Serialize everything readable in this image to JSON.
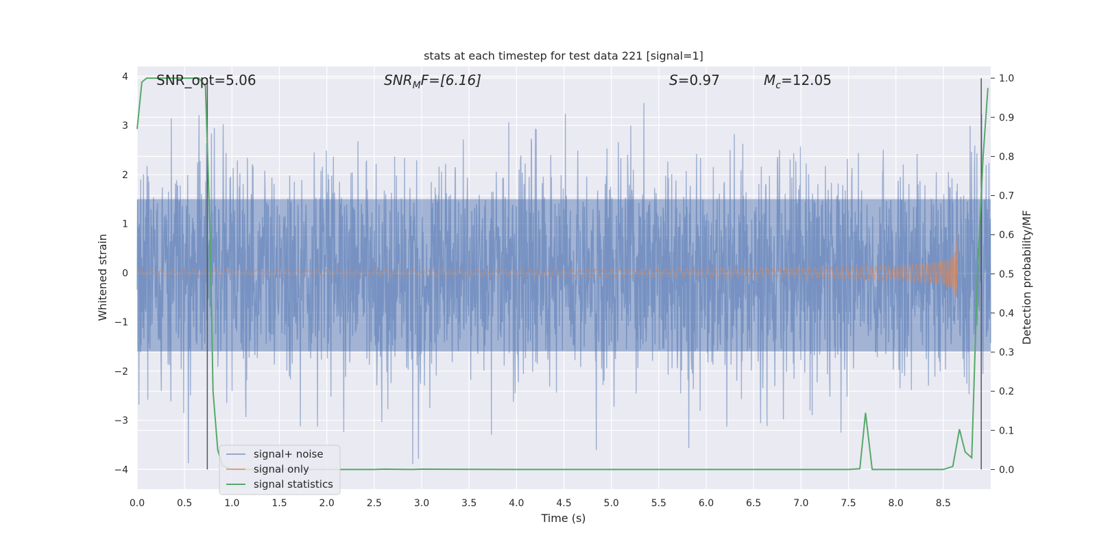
{
  "chart_data": {
    "type": "line",
    "title": "stats at each timestep for test data 221 [signal=1]",
    "xlabel": "Time (s)",
    "ylabel": "Whitened strain",
    "y2label": "Detection probability/MF",
    "xlim": [
      0.0,
      9.0
    ],
    "ylim": [
      -4.4,
      4.2
    ],
    "y2lim": [
      -0.05,
      1.03
    ],
    "xticks": [
      0.0,
      0.5,
      1.0,
      1.5,
      2.0,
      2.5,
      3.0,
      3.5,
      4.0,
      4.5,
      5.0,
      5.5,
      6.0,
      6.5,
      7.0,
      7.5,
      8.0,
      8.5
    ],
    "xtick_labels": [
      "0.0",
      "0.5",
      "1.0",
      "1.5",
      "2.0",
      "2.5",
      "3.0",
      "3.5",
      "4.0",
      "4.5",
      "5.0",
      "5.5",
      "6.0",
      "6.5",
      "7.0",
      "7.5",
      "8.0",
      "8.5"
    ],
    "yticks": [
      -4,
      -3,
      -2,
      -1,
      0,
      1,
      2,
      3,
      4
    ],
    "ytick_labels": [
      "−4",
      "−3",
      "−2",
      "−1",
      "0",
      "1",
      "2",
      "3",
      "4"
    ],
    "y2ticks": [
      0.0,
      0.1,
      0.2,
      0.3,
      0.4,
      0.5,
      0.6,
      0.7,
      0.8,
      0.9,
      1.0
    ],
    "y2tick_labels": [
      "0.0",
      "0.1",
      "0.2",
      "0.3",
      "0.4",
      "0.5",
      "0.6",
      "0.7",
      "0.8",
      "0.9",
      "1.0"
    ],
    "annotations": {
      "snr_opt": "SNR_opt=5.06",
      "snr_mf_sym": "SNR",
      "snr_mf_sub": "M",
      "snr_mf_rest": "F=[6.16]",
      "s_sym": "S",
      "s_rest": "=0.97",
      "mc_sym": "M",
      "mc_sub": "c",
      "mc_rest": "=12.05"
    },
    "legend": {
      "position": "lower-left",
      "entries": [
        "signal+ noise",
        "signal only",
        "signal statistics"
      ]
    },
    "series": [
      {
        "name": "signal+ noise",
        "axis": "left",
        "color": "#4c72b0",
        "style": "noise band",
        "t_range": [
          0.0,
          9.0
        ],
        "band_core": [
          -1.6,
          1.5
        ],
        "max_excursion": [
          -4.0,
          3.85
        ]
      },
      {
        "name": "signal only",
        "axis": "left",
        "color": "#dd8452",
        "style": "chirp",
        "t_range": [
          0.0,
          8.65
        ],
        "peak_amplitude": 0.9,
        "merger_time": 8.65
      },
      {
        "name": "signal statistics",
        "axis": "right",
        "color": "#55a868",
        "x": [
          0.0,
          0.05,
          0.1,
          0.2,
          0.3,
          0.4,
          0.5,
          0.6,
          0.65,
          0.72,
          0.77,
          0.8,
          0.85,
          0.9,
          1.0,
          2.0,
          2.5,
          2.6,
          2.9,
          3.0,
          4.0,
          5.0,
          6.0,
          7.0,
          7.5,
          7.62,
          7.68,
          7.75,
          8.0,
          8.5,
          8.6,
          8.67,
          8.73,
          8.8,
          8.86,
          8.92,
          8.97
        ],
        "values": [
          0.87,
          0.99,
          1.0,
          1.0,
          1.0,
          1.0,
          1.0,
          1.0,
          1.0,
          0.98,
          0.6,
          0.2,
          0.05,
          0.01,
          0.0,
          0.0,
          0.0,
          0.001,
          0.0,
          0.001,
          0.0,
          0.0,
          0.0,
          0.0,
          0.0,
          0.002,
          0.145,
          0.0,
          0.0,
          0.0,
          0.008,
          0.103,
          0.045,
          0.03,
          0.5,
          0.8,
          0.975
        ]
      }
    ],
    "vertical_lines": [
      0.74,
      8.9
    ],
    "grid": true,
    "background": "#eaeaf2"
  }
}
